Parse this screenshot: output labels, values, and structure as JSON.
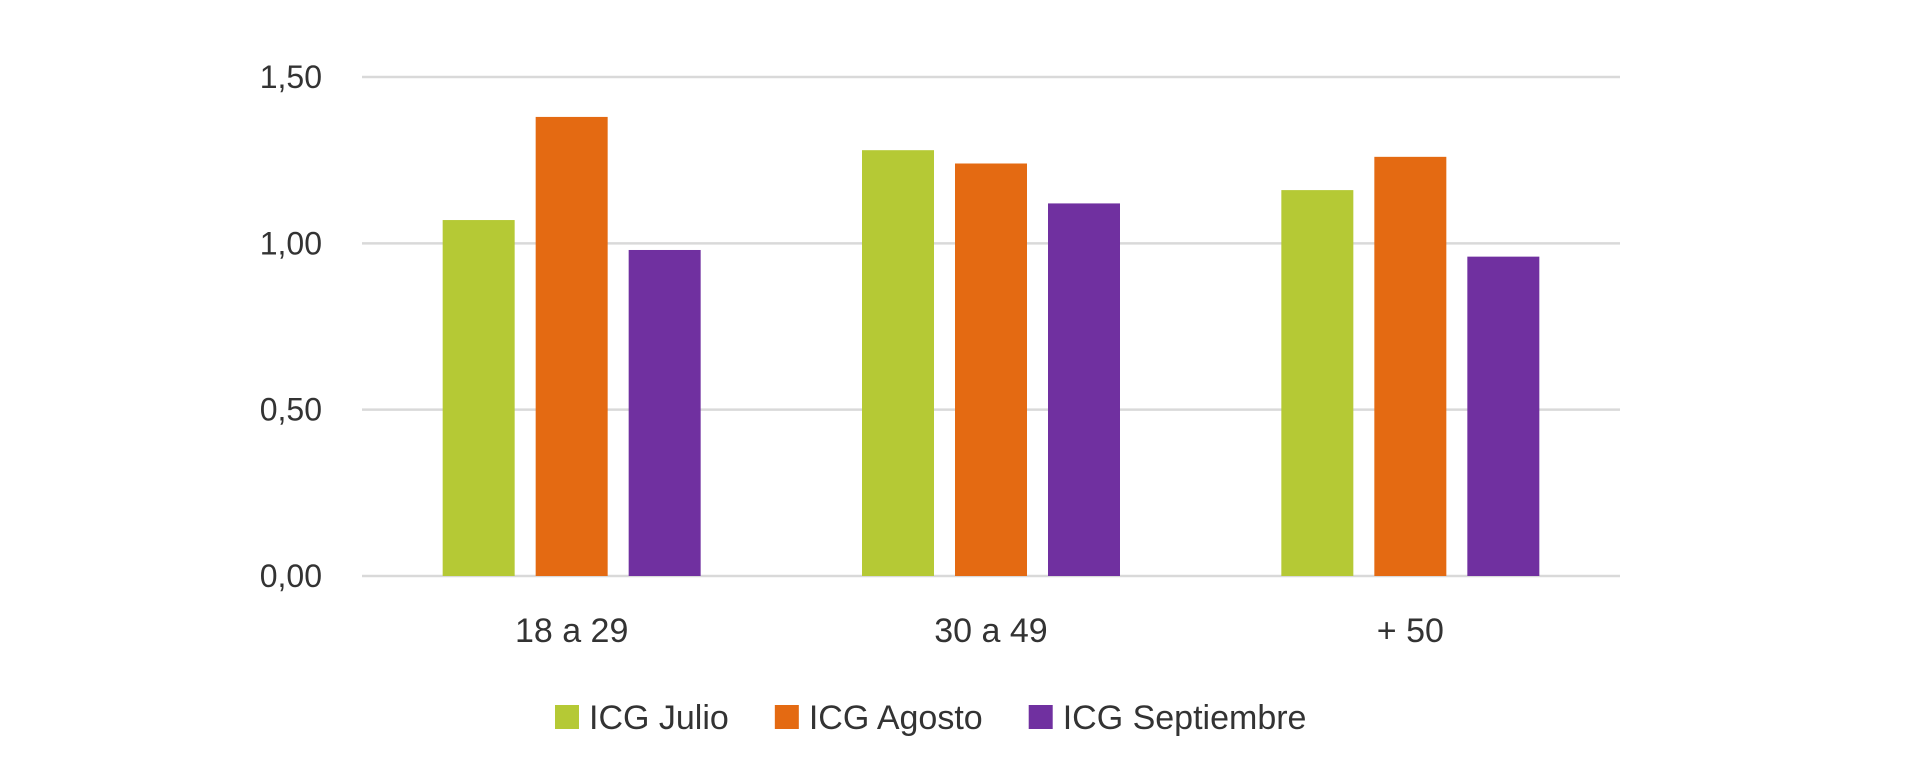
{
  "chart_data": {
    "type": "bar",
    "categories": [
      "18 a 29",
      "30 a 49",
      "+ 50"
    ],
    "series": [
      {
        "name": "ICG Julio",
        "color": "#b5c935",
        "values": [
          1.07,
          1.28,
          1.16
        ]
      },
      {
        "name": "ICG Agosto",
        "color": "#e46a12",
        "values": [
          1.38,
          1.24,
          1.26
        ]
      },
      {
        "name": "ICG Septiembre",
        "color": "#7030a0",
        "values": [
          0.98,
          1.12,
          0.96
        ]
      }
    ],
    "y_ticks": [
      "0,00",
      "0,50",
      "1,00",
      "1,50"
    ],
    "ylim": [
      0,
      1.5
    ],
    "grid": true,
    "legend_position": "bottom",
    "title": "",
    "xlabel": "",
    "ylabel": ""
  }
}
